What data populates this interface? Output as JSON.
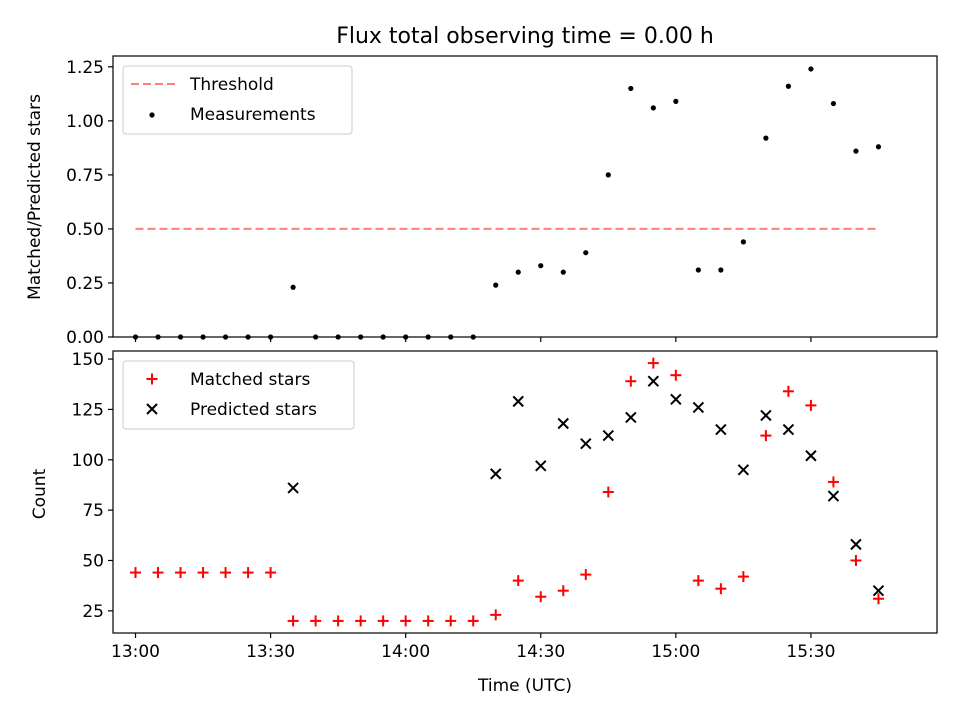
{
  "chart_data": [
    {
      "type": "line",
      "title": "Flux total observing time = 0.00 h",
      "xlabel": "",
      "ylabel": "Matched/Predicted stars",
      "xlim": [
        "12:55",
        "15:58"
      ],
      "ylim": [
        0,
        1.3
      ],
      "yticks": [
        "0.00",
        "0.25",
        "0.50",
        "0.75",
        "1.00",
        "1.25"
      ],
      "grid": false,
      "legend_position": "top-left",
      "series": [
        {
          "name": "Threshold",
          "style": "dashed-line",
          "color": "#ff7f7f",
          "x": [
            "13:00",
            "15:45"
          ],
          "y": [
            0.5,
            0.5
          ]
        },
        {
          "name": "Measurements",
          "style": "points",
          "color": "#000000",
          "x": [
            "13:00",
            "13:05",
            "13:10",
            "13:15",
            "13:20",
            "13:25",
            "13:30",
            "13:35",
            "13:40",
            "13:45",
            "13:50",
            "13:55",
            "14:00",
            "14:05",
            "14:10",
            "14:15",
            "14:20",
            "14:25",
            "14:30",
            "14:35",
            "14:40",
            "14:45",
            "14:50",
            "14:55",
            "15:00",
            "15:05",
            "15:10",
            "15:15",
            "15:20",
            "15:25",
            "15:30",
            "15:35",
            "15:40",
            "15:45"
          ],
          "y": [
            0,
            0,
            0,
            0,
            0,
            0,
            0,
            0.23,
            0,
            0,
            0,
            0,
            0,
            0,
            0,
            0,
            0.24,
            0.3,
            0.33,
            0.3,
            0.39,
            0.75,
            1.15,
            1.06,
            1.09,
            0.31,
            0.31,
            0.44,
            0.92,
            1.16,
            1.24,
            1.08,
            0.86,
            0.88
          ]
        }
      ]
    },
    {
      "type": "scatter",
      "title": "",
      "xlabel": "Time (UTC)",
      "ylabel": "Count",
      "xlim": [
        "12:55",
        "15:58"
      ],
      "ylim": [
        14,
        154
      ],
      "yticks": [
        "25",
        "50",
        "75",
        "100",
        "125",
        "150"
      ],
      "xticks": [
        "13:00",
        "13:30",
        "14:00",
        "14:30",
        "15:00",
        "15:30"
      ],
      "grid": false,
      "legend_position": "top-left",
      "series": [
        {
          "name": "Matched stars",
          "marker": "plus",
          "color": "#ff0000",
          "x": [
            "13:00",
            "13:05",
            "13:10",
            "13:15",
            "13:20",
            "13:25",
            "13:30",
            "13:35",
            "13:40",
            "13:45",
            "13:50",
            "13:55",
            "14:00",
            "14:05",
            "14:10",
            "14:15",
            "14:20",
            "14:25",
            "14:30",
            "14:35",
            "14:40",
            "14:45",
            "14:50",
            "14:55",
            "15:00",
            "15:05",
            "15:10",
            "15:15",
            "15:20",
            "15:25",
            "15:30",
            "15:35",
            "15:40",
            "15:45"
          ],
          "y": [
            44,
            44,
            44,
            44,
            44,
            44,
            44,
            20,
            20,
            20,
            20,
            20,
            20,
            20,
            20,
            20,
            23,
            40,
            32,
            35,
            43,
            84,
            139,
            148,
            142,
            40,
            36,
            42,
            112,
            134,
            127,
            89,
            50,
            31
          ]
        },
        {
          "name": "Predicted stars",
          "marker": "x",
          "color": "#000000",
          "x": [
            "13:35",
            "14:20",
            "14:25",
            "14:30",
            "14:35",
            "14:40",
            "14:45",
            "14:50",
            "14:55",
            "15:00",
            "15:05",
            "15:10",
            "15:15",
            "15:20",
            "15:25",
            "15:30",
            "15:35",
            "15:40",
            "15:45"
          ],
          "y": [
            86,
            93,
            129,
            97,
            118,
            108,
            112,
            121,
            139,
            130,
            126,
            115,
            95,
            122,
            115,
            102,
            82,
            58,
            35
          ]
        }
      ]
    }
  ]
}
